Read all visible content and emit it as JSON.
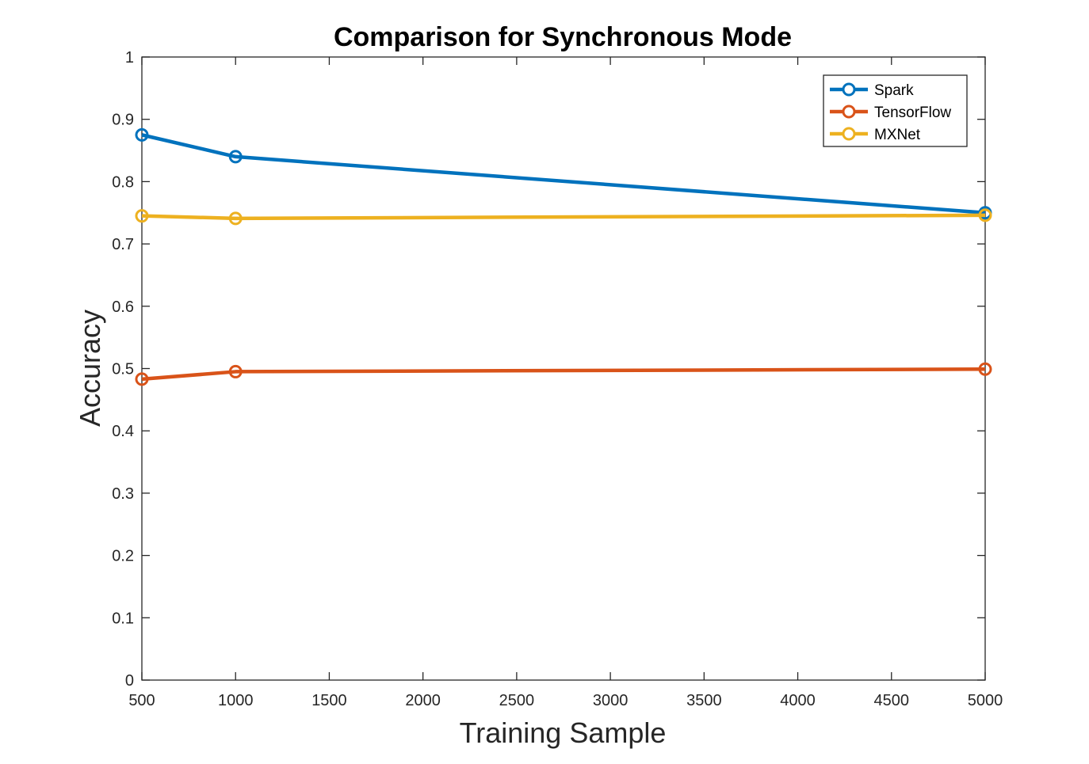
{
  "chart_data": {
    "type": "line",
    "title": "Comparison for Synchronous Mode",
    "xlabel": "Training Sample",
    "ylabel": "Accuracy",
    "xlim": [
      500,
      5000
    ],
    "ylim": [
      0,
      1
    ],
    "xticks": [
      500,
      1000,
      1500,
      2000,
      2500,
      3000,
      3500,
      4000,
      4500,
      5000
    ],
    "yticks": [
      0,
      0.1,
      0.2,
      0.3,
      0.4,
      0.5,
      0.6,
      0.7,
      0.8,
      0.9,
      1
    ],
    "grid": false,
    "legend_position": "top-right",
    "x": [
      500,
      1000,
      5000
    ],
    "series": [
      {
        "name": "Spark",
        "values": [
          0.875,
          0.84,
          0.75
        ],
        "color": "#0072BD"
      },
      {
        "name": "TensorFlow",
        "values": [
          0.483,
          0.495,
          0.499
        ],
        "color": "#D95319"
      },
      {
        "name": "MXNet",
        "values": [
          0.745,
          0.741,
          0.746
        ],
        "color": "#EDB120"
      }
    ]
  }
}
